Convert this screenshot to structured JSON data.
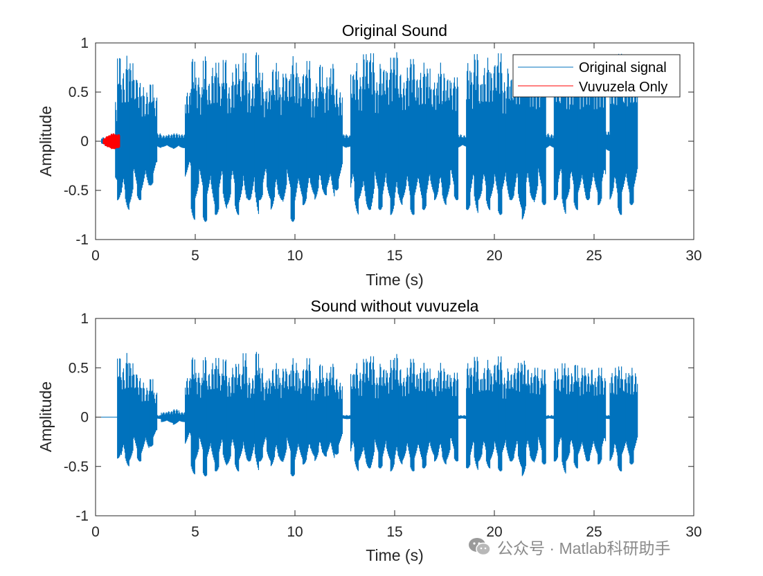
{
  "colors": {
    "original": "#0072BD",
    "vuvuzela": "#FF0000",
    "axes": "#262626",
    "background": "#ffffff"
  },
  "watermark": {
    "icon": "wechat-icon",
    "text": "公众号 · Matlab科研助手"
  },
  "chart_data": [
    {
      "type": "line",
      "title": "Original Sound",
      "xlabel": "Time (s)",
      "ylabel": "Amplitude",
      "xlim": [
        0,
        30
      ],
      "ylim": [
        -1,
        1
      ],
      "xticks": [
        0,
        5,
        10,
        15,
        20,
        25,
        30
      ],
      "yticks": [
        -1,
        -0.5,
        0,
        0.5,
        1
      ],
      "xtick_labels": [
        "0",
        "5",
        "10",
        "15",
        "20",
        "25",
        "30"
      ],
      "ytick_labels": [
        "-1",
        "-0.5",
        "0",
        "0.5",
        "1"
      ],
      "grid": false,
      "legend": {
        "placement": "top-right",
        "entries": [
          "Original signal",
          "Vuvuzela Only"
        ]
      },
      "signal_end": 27,
      "series": [
        {
          "name": "Original signal",
          "color": "#0072BD",
          "x": [
            0.3,
            0.5,
            0.7,
            0.9,
            1.0,
            1.1,
            1.3,
            1.5,
            1.7,
            1.9,
            2.1,
            2.3,
            2.5,
            2.7,
            2.9,
            3.1,
            3.3,
            3.6,
            3.9,
            4.2,
            4.5,
            4.8,
            5.0,
            5.2,
            5.4,
            5.6,
            5.8,
            6.0,
            6.2,
            6.4,
            6.6,
            6.8,
            7.0,
            7.2,
            7.4,
            7.6,
            7.8,
            8.0,
            8.2,
            8.4,
            8.6,
            8.8,
            9.0,
            9.2,
            9.4,
            9.6,
            9.8,
            10.0,
            10.2,
            10.4,
            10.6,
            10.8,
            11.0,
            11.2,
            11.4,
            11.6,
            11.8,
            12.0,
            12.2,
            12.4,
            12.6,
            12.8,
            13.0,
            13.2,
            13.4,
            13.6,
            13.8,
            14.0,
            14.2,
            14.4,
            14.6,
            14.8,
            15.0,
            15.2,
            15.4,
            15.6,
            15.8,
            16.0,
            16.2,
            16.4,
            16.6,
            16.8,
            17.0,
            17.2,
            17.4,
            17.6,
            17.8,
            18.0,
            18.2,
            18.4,
            18.6,
            18.8,
            19.0,
            19.2,
            19.4,
            19.6,
            19.8,
            20.0,
            20.2,
            20.4,
            20.6,
            20.8,
            21.0,
            21.2,
            21.4,
            21.6,
            21.8,
            22.0,
            22.2,
            22.4,
            22.6,
            22.8,
            23.0,
            23.2,
            23.4,
            23.6,
            23.8,
            24.0,
            24.2,
            24.4,
            24.6,
            24.8,
            25.0,
            25.2,
            25.4,
            25.6,
            25.8,
            26.0,
            26.2,
            26.4,
            26.6,
            26.8,
            27.0
          ],
          "upper": [
            0.04,
            0.05,
            0.05,
            0.05,
            0.4,
            0.88,
            0.7,
            0.87,
            0.8,
            0.65,
            0.6,
            0.55,
            0.5,
            0.6,
            0.45,
            0.08,
            0.06,
            0.07,
            0.08,
            0.07,
            0.5,
            0.86,
            0.65,
            0.55,
            0.88,
            0.6,
            0.75,
            0.8,
            0.6,
            0.85,
            0.55,
            0.7,
            0.8,
            0.65,
            0.9,
            0.6,
            0.6,
            0.93,
            0.7,
            0.5,
            0.55,
            0.75,
            0.8,
            0.55,
            0.7,
            0.65,
            0.87,
            0.8,
            0.6,
            0.7,
            0.82,
            0.5,
            0.6,
            0.8,
            0.55,
            0.65,
            0.8,
            0.55,
            0.5,
            0.07,
            0.06,
            0.7,
            0.8,
            0.65,
            0.9,
            0.85,
            0.9,
            0.6,
            0.8,
            0.75,
            0.7,
            0.85,
            0.92,
            0.7,
            0.6,
            0.75,
            0.85,
            0.65,
            0.7,
            0.8,
            0.75,
            0.55,
            0.6,
            0.8,
            0.7,
            0.65,
            0.6,
            0.65,
            0.07,
            0.06,
            0.8,
            0.7,
            0.9,
            0.6,
            0.75,
            0.85,
            0.7,
            0.8,
            0.9,
            0.6,
            0.75,
            0.65,
            0.7,
            0.8,
            0.85,
            0.75,
            0.65,
            0.7,
            0.6,
            0.75,
            0.08,
            0.07,
            0.7,
            0.6,
            0.85,
            0.7,
            0.65,
            0.8,
            0.6,
            0.75,
            0.65,
            0.7,
            0.6,
            0.75,
            0.6,
            0.1,
            0.7,
            0.8,
            0.9,
            0.6,
            0.65,
            0.85,
            0.7
          ],
          "lower": [
            -0.04,
            -0.05,
            -0.05,
            -0.05,
            -0.4,
            -0.6,
            -0.75,
            -0.7,
            -0.65,
            -0.55,
            -0.6,
            -0.55,
            -0.5,
            -0.45,
            -0.4,
            -0.07,
            -0.06,
            -0.07,
            -0.08,
            -0.07,
            -0.4,
            -0.8,
            -0.6,
            -0.55,
            -0.82,
            -0.6,
            -0.7,
            -0.75,
            -0.6,
            -0.7,
            -0.65,
            -0.6,
            -0.75,
            -0.65,
            -0.7,
            -0.6,
            -0.65,
            -0.8,
            -0.6,
            -0.55,
            -0.6,
            -0.7,
            -0.75,
            -0.6,
            -0.65,
            -0.55,
            -0.82,
            -0.7,
            -0.6,
            -0.65,
            -0.7,
            -0.55,
            -0.6,
            -0.65,
            -0.55,
            -0.5,
            -0.65,
            -0.5,
            -0.45,
            -0.07,
            -0.06,
            -0.65,
            -0.75,
            -0.6,
            -0.8,
            -0.7,
            -0.75,
            -0.55,
            -0.7,
            -0.65,
            -0.6,
            -0.75,
            -0.82,
            -0.65,
            -0.6,
            -0.7,
            -0.75,
            -0.6,
            -0.65,
            -0.7,
            -0.65,
            -0.55,
            -0.6,
            -0.7,
            -0.65,
            -0.6,
            -0.55,
            -0.6,
            -0.07,
            -0.06,
            -0.7,
            -0.65,
            -0.75,
            -0.6,
            -0.65,
            -0.7,
            -0.6,
            -0.65,
            -0.75,
            -0.55,
            -0.65,
            -0.6,
            -0.65,
            -0.7,
            -0.8,
            -0.65,
            -0.6,
            -0.65,
            -0.55,
            -0.65,
            -0.08,
            -0.07,
            -0.6,
            -0.55,
            -0.75,
            -0.6,
            -0.6,
            -0.7,
            -0.55,
            -0.65,
            -0.6,
            -0.6,
            -0.55,
            -0.65,
            -0.55,
            -0.1,
            -0.6,
            -0.7,
            -0.75,
            -0.55,
            -0.6,
            -0.65,
            -0.55
          ]
        },
        {
          "name": "Vuvuzela Only",
          "color": "#FF0000",
          "x": [
            0.4,
            0.5,
            0.6,
            0.7,
            0.8,
            0.9,
            1.0
          ],
          "upper": [
            0.03,
            0.05,
            0.06,
            0.07,
            0.08,
            0.08,
            0.07
          ],
          "lower": [
            -0.03,
            -0.05,
            -0.06,
            -0.07,
            -0.08,
            -0.08,
            -0.07
          ]
        }
      ]
    },
    {
      "type": "line",
      "title": "Sound without vuvuzela",
      "xlabel": "Time (s)",
      "ylabel": "Amplitude",
      "xlim": [
        0,
        30
      ],
      "ylim": [
        -1,
        1
      ],
      "xticks": [
        0,
        5,
        10,
        15,
        20,
        25,
        30
      ],
      "yticks": [
        -1,
        -0.5,
        0,
        0.5,
        1
      ],
      "xtick_labels": [
        "0",
        "5",
        "10",
        "15",
        "20",
        "25",
        "30"
      ],
      "ytick_labels": [
        "-1",
        "-0.5",
        "0",
        "0.5",
        "1"
      ],
      "grid": false,
      "signal_end": 27,
      "series": [
        {
          "color": "#0072BD",
          "x": [
            0.3,
            0.5,
            0.7,
            0.9,
            1.0,
            1.1,
            1.3,
            1.5,
            1.7,
            1.9,
            2.1,
            2.3,
            2.5,
            2.7,
            2.9,
            3.1,
            3.3,
            3.6,
            3.9,
            4.2,
            4.5,
            4.8,
            5.0,
            5.2,
            5.4,
            5.6,
            5.8,
            6.0,
            6.2,
            6.4,
            6.6,
            6.8,
            7.0,
            7.2,
            7.4,
            7.6,
            7.8,
            8.0,
            8.2,
            8.4,
            8.6,
            8.8,
            9.0,
            9.2,
            9.4,
            9.6,
            9.8,
            10.0,
            10.2,
            10.4,
            10.6,
            10.8,
            11.0,
            11.2,
            11.4,
            11.6,
            11.8,
            12.0,
            12.2,
            12.4,
            12.6,
            12.8,
            13.0,
            13.2,
            13.4,
            13.6,
            13.8,
            14.0,
            14.2,
            14.4,
            14.6,
            14.8,
            15.0,
            15.2,
            15.4,
            15.6,
            15.8,
            16.0,
            16.2,
            16.4,
            16.6,
            16.8,
            17.0,
            17.2,
            17.4,
            17.6,
            17.8,
            18.0,
            18.2,
            18.4,
            18.6,
            18.8,
            19.0,
            19.2,
            19.4,
            19.6,
            19.8,
            20.0,
            20.2,
            20.4,
            20.6,
            20.8,
            21.0,
            21.2,
            21.4,
            21.6,
            21.8,
            22.0,
            22.2,
            22.4,
            22.6,
            22.8,
            23.0,
            23.2,
            23.4,
            23.6,
            23.8,
            24.0,
            24.2,
            24.4,
            24.6,
            24.8,
            25.0,
            25.2,
            25.4,
            25.6,
            25.8,
            26.0,
            26.2,
            26.4,
            26.6,
            26.8,
            27.0
          ],
          "upper": [
            0.0,
            0.0,
            0.0,
            0.0,
            0.0,
            0.62,
            0.5,
            0.65,
            0.55,
            0.45,
            0.4,
            0.35,
            0.3,
            0.4,
            0.25,
            0.02,
            0.05,
            0.06,
            0.08,
            0.05,
            0.4,
            0.62,
            0.45,
            0.4,
            0.62,
            0.45,
            0.55,
            0.6,
            0.45,
            0.6,
            0.4,
            0.5,
            0.55,
            0.45,
            0.65,
            0.4,
            0.4,
            0.68,
            0.5,
            0.35,
            0.4,
            0.5,
            0.55,
            0.4,
            0.5,
            0.45,
            0.6,
            0.55,
            0.4,
            0.5,
            0.6,
            0.35,
            0.4,
            0.55,
            0.4,
            0.45,
            0.55,
            0.4,
            0.35,
            0.02,
            0.02,
            0.45,
            0.55,
            0.45,
            0.6,
            0.58,
            0.62,
            0.4,
            0.55,
            0.5,
            0.45,
            0.58,
            0.65,
            0.5,
            0.4,
            0.5,
            0.6,
            0.45,
            0.5,
            0.55,
            0.5,
            0.4,
            0.4,
            0.55,
            0.5,
            0.45,
            0.4,
            0.45,
            0.02,
            0.02,
            0.55,
            0.5,
            0.62,
            0.4,
            0.5,
            0.58,
            0.45,
            0.55,
            0.62,
            0.4,
            0.5,
            0.45,
            0.5,
            0.55,
            0.58,
            0.5,
            0.45,
            0.5,
            0.4,
            0.5,
            0.02,
            0.02,
            0.5,
            0.4,
            0.55,
            0.5,
            0.45,
            0.55,
            0.4,
            0.5,
            0.45,
            0.5,
            0.4,
            0.5,
            0.4,
            0.02,
            0.45,
            0.5,
            0.52,
            0.4,
            0.45,
            0.5,
            0.45
          ],
          "lower": [
            0.0,
            0.0,
            0.0,
            0.0,
            0.0,
            -0.42,
            -0.55,
            -0.5,
            -0.45,
            -0.4,
            -0.45,
            -0.4,
            -0.35,
            -0.3,
            -0.25,
            -0.02,
            -0.05,
            -0.06,
            -0.08,
            -0.05,
            -0.3,
            -0.58,
            -0.45,
            -0.4,
            -0.6,
            -0.45,
            -0.5,
            -0.55,
            -0.45,
            -0.5,
            -0.48,
            -0.45,
            -0.55,
            -0.45,
            -0.5,
            -0.45,
            -0.48,
            -0.58,
            -0.45,
            -0.4,
            -0.45,
            -0.5,
            -0.55,
            -0.45,
            -0.48,
            -0.4,
            -0.6,
            -0.5,
            -0.45,
            -0.48,
            -0.52,
            -0.4,
            -0.45,
            -0.48,
            -0.4,
            -0.38,
            -0.48,
            -0.38,
            -0.33,
            -0.02,
            -0.02,
            -0.48,
            -0.55,
            -0.45,
            -0.6,
            -0.52,
            -0.55,
            -0.4,
            -0.52,
            -0.48,
            -0.45,
            -0.55,
            -0.6,
            -0.48,
            -0.45,
            -0.52,
            -0.55,
            -0.45,
            -0.48,
            -0.52,
            -0.48,
            -0.4,
            -0.45,
            -0.52,
            -0.48,
            -0.45,
            -0.4,
            -0.45,
            -0.02,
            -0.02,
            -0.52,
            -0.48,
            -0.55,
            -0.45,
            -0.48,
            -0.52,
            -0.45,
            -0.48,
            -0.55,
            -0.4,
            -0.48,
            -0.45,
            -0.48,
            -0.52,
            -0.6,
            -0.48,
            -0.45,
            -0.48,
            -0.4,
            -0.48,
            -0.02,
            -0.02,
            -0.45,
            -0.4,
            -0.58,
            -0.45,
            -0.45,
            -0.52,
            -0.4,
            -0.48,
            -0.45,
            -0.45,
            -0.4,
            -0.48,
            -0.4,
            -0.02,
            -0.45,
            -0.52,
            -0.55,
            -0.4,
            -0.45,
            -0.48,
            -0.4
          ]
        }
      ]
    }
  ]
}
